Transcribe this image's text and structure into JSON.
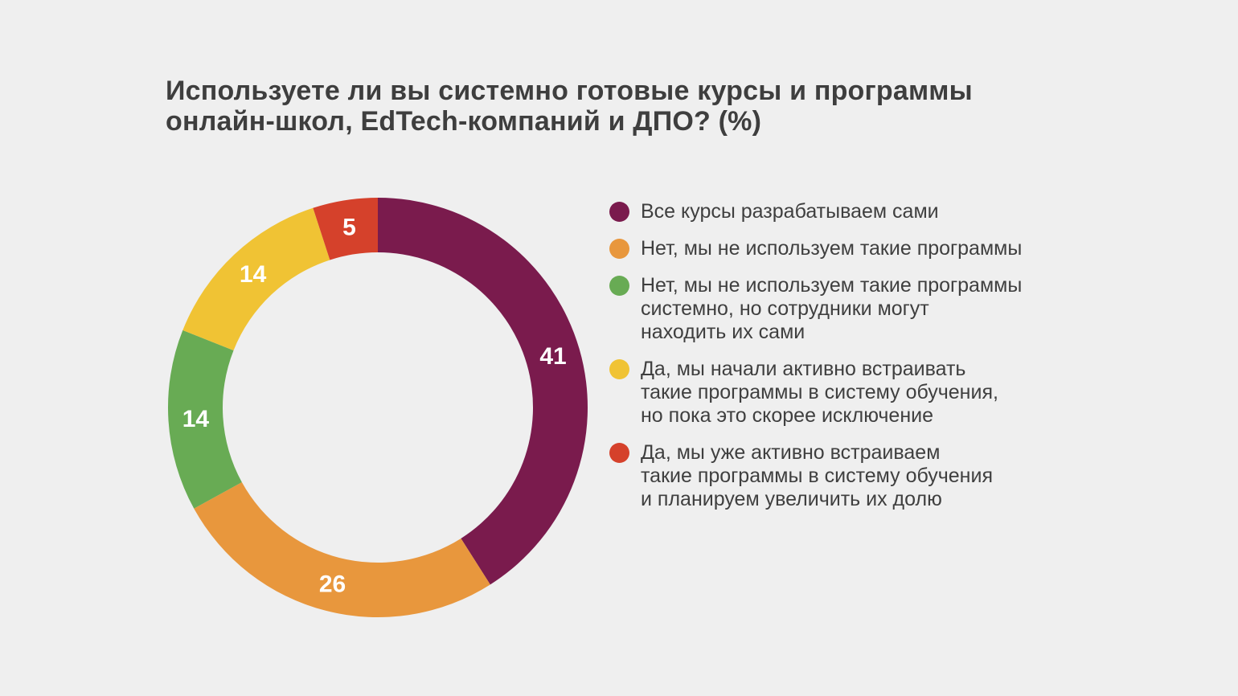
{
  "header": {
    "title": "Используете ли вы системно готовые курсы и программы\nонлайн-школ, EdTech-компаний и ДПО? (%)"
  },
  "colors": {
    "background": "#EFEFEF",
    "title_text": "#3E3E3E",
    "legend_text": "#3F3F3F",
    "slice_label_text": "#FFFFFF"
  },
  "chart_data": {
    "type": "pie",
    "subtype": "donut",
    "title": "Используете ли вы системно готовые курсы и программы онлайн-школ, EdTech-компаний и ДПО? (%)",
    "units": "%",
    "start_angle_deg": 0,
    "direction": "clockwise",
    "legend_position": "right",
    "inner_radius_ratio": 0.74,
    "slices": [
      {
        "label": "Все курсы разрабатываем сами",
        "value": 41,
        "color": "#7A1B4D"
      },
      {
        "label": "Нет, мы не используем такие программы",
        "value": 26,
        "color": "#E8973D"
      },
      {
        "label": "Нет, мы не используем такие программы системно, но сотрудники могут находить их сами",
        "value": 14,
        "color": "#68AB54"
      },
      {
        "label": "Да, мы начали активно встраивать такие программы в систему обучения, но пока это скорее исключение",
        "value": 14,
        "color": "#F0C334"
      },
      {
        "label": "Да, мы уже активно встраиваем такие программы в систему обучения и планируем увеличить их долю",
        "value": 5,
        "color": "#D5412B"
      }
    ]
  },
  "legend": {
    "items": [
      {
        "label": "Все курсы разрабатываем сами",
        "color": "#7A1B4D"
      },
      {
        "label": "Нет, мы не используем такие программы",
        "color": "#E8973D"
      },
      {
        "label": "Нет, мы не используем такие программы\nсистемно, но сотрудники могут\nнаходить их сами",
        "color": "#68AB54"
      },
      {
        "label": "Да, мы начали активно встраивать\nтакие программы в систему обучения,\nно пока это скорее исключение",
        "color": "#F0C334"
      },
      {
        "label": "Да, мы уже активно встраиваем\nтакие программы в систему обучения\nи планируем увеличить их долю",
        "color": "#D5412B"
      }
    ]
  }
}
